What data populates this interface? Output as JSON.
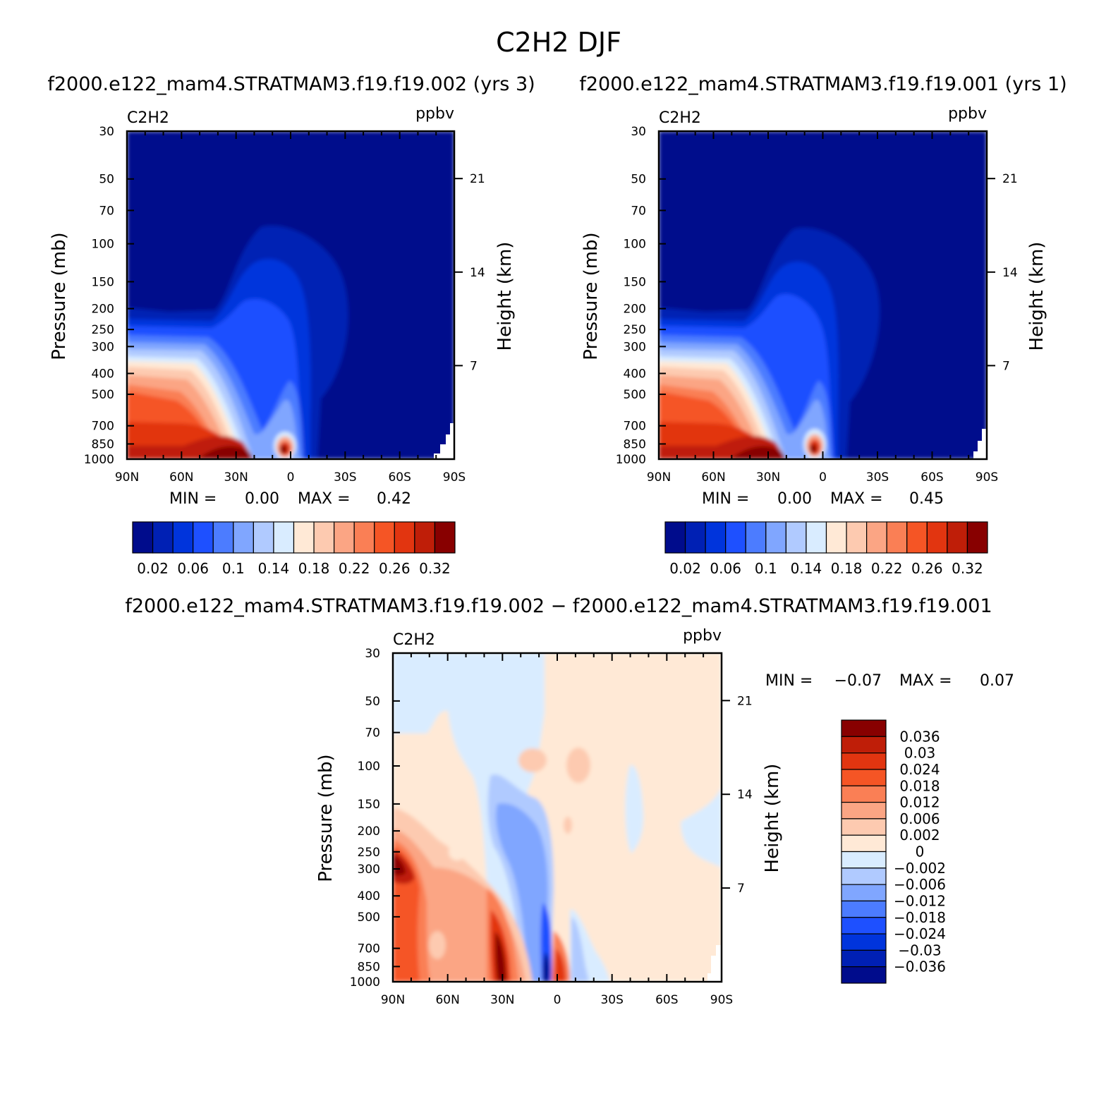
{
  "figure": {
    "title": "C2H2 DJF",
    "subtitle_left": "f2000.e122_mam4.STRATMAM3.f19.f19.002 (yrs 3)",
    "subtitle_right": "f2000.e122_mam4.STRATMAM3.f19.f19.001 (yrs 1)",
    "diff_title": "f2000.e122_mam4.STRATMAM3.f19.f19.002 − f2000.e122_mam4.STRATMAM3.f19.f19.001"
  },
  "chart_data": [
    {
      "type": "heatmap",
      "id": "case1",
      "variable": "C2H2",
      "units": "ppbv",
      "ylabel": "Pressure (mb)",
      "ylabel_right": "Height (km)",
      "x_ticks": [
        "90N",
        "60N",
        "30N",
        "0",
        "30S",
        "60S",
        "90S"
      ],
      "x_values": [
        90,
        60,
        30,
        0,
        -30,
        -60,
        -90
      ],
      "y_ticks": [
        "30",
        "50",
        "70",
        "100",
        "150",
        "200",
        "250",
        "300",
        "400",
        "500",
        "700",
        "850",
        "1000"
      ],
      "y_values": [
        30,
        50,
        70,
        100,
        150,
        200,
        250,
        300,
        400,
        500,
        700,
        850,
        1000
      ],
      "height_ticks": [
        "21",
        "14",
        "7"
      ],
      "height_values": [
        21,
        14,
        7
      ],
      "ylim": [
        1000,
        30
      ],
      "min_label": "MIN =",
      "min_value": "0.00",
      "max_label": "MAX =",
      "max_value": "0.42",
      "colorbar_labels": [
        "0.02",
        "0.06",
        "0.1",
        "0.14",
        "0.18",
        "0.22",
        "0.26",
        "0.32"
      ],
      "colorbar_colors": [
        "#000c8c",
        "#0020b4",
        "#0034dc",
        "#1e50ff",
        "#4c7cff",
        "#80a6ff",
        "#b0caff",
        "#d9ecff",
        "#ffe9d6",
        "#fdcab0",
        "#fba584",
        "#fa7f55",
        "#f55525",
        "#e23510",
        "#bf1e08",
        "#880000"
      ]
    },
    {
      "type": "heatmap",
      "id": "case2",
      "variable": "C2H2",
      "units": "ppbv",
      "ylabel": "Pressure (mb)",
      "ylabel_right": "Height (km)",
      "x_ticks": [
        "90N",
        "60N",
        "30N",
        "0",
        "30S",
        "60S",
        "90S"
      ],
      "x_values": [
        90,
        60,
        30,
        0,
        -30,
        -60,
        -90
      ],
      "y_ticks": [
        "30",
        "50",
        "70",
        "100",
        "150",
        "200",
        "250",
        "300",
        "400",
        "500",
        "700",
        "850",
        "1000"
      ],
      "y_values": [
        30,
        50,
        70,
        100,
        150,
        200,
        250,
        300,
        400,
        500,
        700,
        850,
        1000
      ],
      "height_ticks": [
        "21",
        "14",
        "7"
      ],
      "height_values": [
        21,
        14,
        7
      ],
      "ylim": [
        1000,
        30
      ],
      "min_label": "MIN =",
      "min_value": "0.00",
      "max_label": "MAX =",
      "max_value": "0.45",
      "colorbar_labels": [
        "0.02",
        "0.06",
        "0.1",
        "0.14",
        "0.18",
        "0.22",
        "0.26",
        "0.32"
      ],
      "colorbar_colors": [
        "#000c8c",
        "#0020b4",
        "#0034dc",
        "#1e50ff",
        "#4c7cff",
        "#80a6ff",
        "#b0caff",
        "#d9ecff",
        "#ffe9d6",
        "#fdcab0",
        "#fba584",
        "#fa7f55",
        "#f55525",
        "#e23510",
        "#bf1e08",
        "#880000"
      ]
    },
    {
      "type": "heatmap",
      "id": "diff",
      "variable": "C2H2",
      "units": "ppbv",
      "ylabel": "Pressure (mb)",
      "ylabel_right": "Height (km)",
      "x_ticks": [
        "90N",
        "60N",
        "30N",
        "0",
        "30S",
        "60S",
        "90S"
      ],
      "x_values": [
        90,
        60,
        30,
        0,
        -30,
        -60,
        -90
      ],
      "y_ticks": [
        "30",
        "50",
        "70",
        "100",
        "150",
        "200",
        "250",
        "300",
        "400",
        "500",
        "700",
        "850",
        "1000"
      ],
      "y_values": [
        30,
        50,
        70,
        100,
        150,
        200,
        250,
        300,
        400,
        500,
        700,
        850,
        1000
      ],
      "height_ticks": [
        "21",
        "14",
        "7"
      ],
      "height_values": [
        21,
        14,
        7
      ],
      "ylim": [
        1000,
        30
      ],
      "min_label": "MIN =",
      "min_value": "−0.07",
      "max_label": "MAX =",
      "max_value": "0.07",
      "colorbar_labels": [
        "0.036",
        "0.03",
        "0.024",
        "0.018",
        "0.012",
        "0.006",
        "0.002",
        "0",
        "−0.002",
        "−0.006",
        "−0.012",
        "−0.018",
        "−0.024",
        "−0.03",
        "−0.036"
      ],
      "colorbar_colors": [
        "#880000",
        "#bf1e08",
        "#e23510",
        "#f55525",
        "#fa7f55",
        "#fba584",
        "#fdcab0",
        "#ffe9d6",
        "#d9ecff",
        "#b0caff",
        "#80a6ff",
        "#4c7cff",
        "#1e50ff",
        "#0034dc",
        "#0020b4",
        "#000c8c"
      ]
    }
  ]
}
